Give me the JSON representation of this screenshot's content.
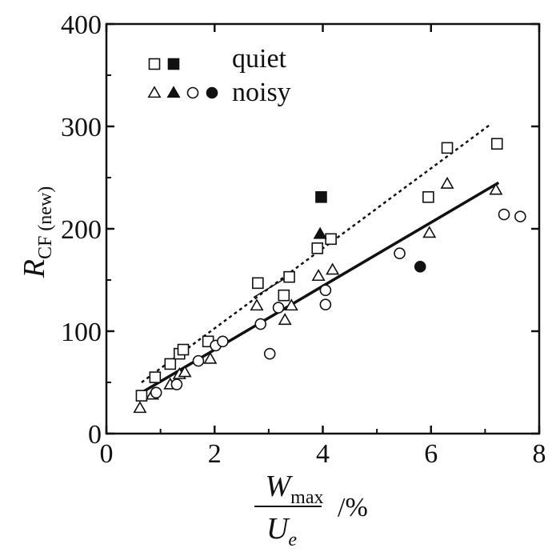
{
  "chart_data": {
    "type": "scatter",
    "title": "",
    "xlabel": {
      "numerator_main": "W",
      "numerator_sub": "max",
      "denominator_main": "U",
      "denominator_sub": "e",
      "unit": "/%"
    },
    "ylabel": {
      "main": "R",
      "sub": "CF (new)"
    },
    "xlim": [
      0,
      8
    ],
    "ylim": [
      0,
      400
    ],
    "x_ticks": [
      "0",
      "2",
      "4",
      "6",
      "8"
    ],
    "y_ticks": [
      "0",
      "100",
      "200",
      "300",
      "400"
    ],
    "grid": false,
    "legend": {
      "placement": "top-left",
      "entries": [
        {
          "label": "quiet",
          "markers": [
            "open-square",
            "filled-square"
          ]
        },
        {
          "label": "noisy",
          "markers": [
            "open-triangle",
            "filled-triangle",
            "open-circle",
            "filled-circle"
          ]
        }
      ]
    },
    "series": [
      {
        "marker": "open-square",
        "points": [
          [
            0.65,
            37
          ],
          [
            0.9,
            55
          ],
          [
            1.18,
            68
          ],
          [
            1.35,
            78
          ],
          [
            1.42,
            82
          ],
          [
            1.88,
            90
          ],
          [
            2.8,
            147
          ],
          [
            3.28,
            135
          ],
          [
            3.38,
            153
          ],
          [
            3.9,
            181
          ],
          [
            4.15,
            190
          ],
          [
            5.95,
            231
          ],
          [
            6.3,
            279
          ],
          [
            7.22,
            283
          ]
        ]
      },
      {
        "marker": "filled-square",
        "points": [
          [
            3.97,
            231
          ]
        ]
      },
      {
        "marker": "open-triangle",
        "points": [
          [
            0.62,
            25
          ],
          [
            0.85,
            38
          ],
          [
            1.18,
            48
          ],
          [
            1.35,
            58
          ],
          [
            1.45,
            60
          ],
          [
            1.92,
            73
          ],
          [
            2.78,
            125
          ],
          [
            3.3,
            111
          ],
          [
            3.42,
            125
          ],
          [
            3.92,
            154
          ],
          [
            4.18,
            160
          ],
          [
            5.97,
            196
          ],
          [
            6.3,
            244
          ],
          [
            7.2,
            238
          ]
        ]
      },
      {
        "marker": "filled-triangle",
        "points": [
          [
            3.95,
            195
          ]
        ]
      },
      {
        "marker": "open-circle",
        "points": [
          [
            0.92,
            40
          ],
          [
            1.3,
            48
          ],
          [
            1.7,
            71
          ],
          [
            2.02,
            86
          ],
          [
            2.15,
            90
          ],
          [
            2.85,
            107
          ],
          [
            3.02,
            78
          ],
          [
            3.18,
            123
          ],
          [
            4.05,
            126
          ],
          [
            4.05,
            140
          ],
          [
            5.42,
            176
          ],
          [
            7.35,
            214
          ],
          [
            7.65,
            212
          ]
        ]
      },
      {
        "marker": "filled-circle",
        "points": [
          [
            5.8,
            163
          ]
        ]
      }
    ],
    "lines": [
      {
        "style": "dashed",
        "points": [
          [
            0.65,
            50
          ],
          [
            7.1,
            302
          ]
        ]
      },
      {
        "style": "solid-thick",
        "points": [
          [
            0.65,
            40
          ],
          [
            7.25,
            245
          ]
        ]
      },
      {
        "style": "solid-thin",
        "points": [
          [
            2.72,
            133
          ],
          [
            3.35,
            153
          ]
        ]
      }
    ]
  }
}
